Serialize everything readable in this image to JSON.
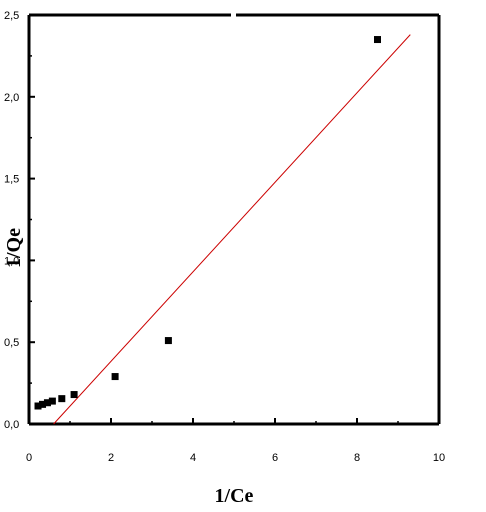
{
  "chart_data": {
    "type": "scatter",
    "xlabel": "1/Ce",
    "ylabel": "1/Qe",
    "xlim": [
      0,
      10
    ],
    "ylim": [
      0,
      2.5
    ],
    "x_ticks": [
      0,
      2,
      4,
      6,
      8,
      10
    ],
    "x_tick_labels": [
      "0",
      "2",
      "4",
      "6",
      "8",
      "10"
    ],
    "y_ticks": [
      0,
      0.5,
      1.0,
      1.5,
      2.0,
      2.5
    ],
    "y_tick_labels": [
      "0,0",
      "0,5",
      "1,0",
      "1,5",
      "2,0",
      "2,5"
    ],
    "grid": false,
    "series": [
      {
        "kind": "points",
        "color": "#000000",
        "points": [
          [
            0.22,
            0.11
          ],
          [
            0.33,
            0.12
          ],
          [
            0.45,
            0.13
          ],
          [
            0.57,
            0.14
          ],
          [
            0.8,
            0.155
          ],
          [
            1.1,
            0.18
          ],
          [
            2.1,
            0.29
          ],
          [
            3.4,
            0.51
          ],
          [
            8.5,
            2.35
          ]
        ]
      },
      {
        "kind": "fit-line",
        "color": "#cc0000",
        "points": [
          [
            0.6,
            0.0
          ],
          [
            9.3,
            2.38
          ]
        ]
      }
    ]
  }
}
